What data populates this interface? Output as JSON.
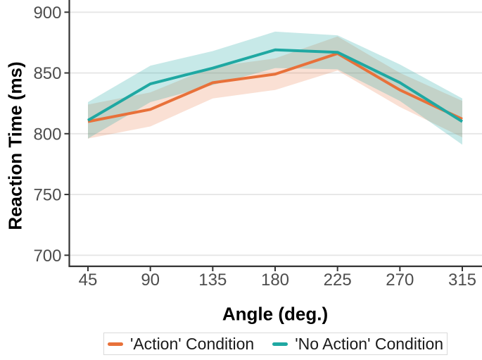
{
  "chart_data": {
    "type": "line",
    "title": "",
    "xlabel": "Angle (deg.)",
    "ylabel": "Reaction Time (ms)",
    "x": [
      45,
      90,
      135,
      180,
      225,
      270,
      315
    ],
    "x_ticks": [
      "45",
      "90",
      "135",
      "180",
      "225",
      "270",
      "315"
    ],
    "y_ticks": [
      "700",
      "750",
      "800",
      "850",
      "900"
    ],
    "y_tick_values": [
      700,
      750,
      800,
      850,
      900
    ],
    "xlim": [
      30,
      330
    ],
    "ylim": [
      691,
      910
    ],
    "grid": "horizontal-major-only",
    "legend_position": "bottom",
    "background_color": "#ffffff",
    "gridline_color": "#e6e6e6",
    "axis_line_color": "#333333",
    "tick_label_color": "#4d4d4d",
    "series": [
      {
        "name": "'Action' Condition",
        "color": "#e8713a",
        "band_opacity": 0.22,
        "values": [
          810,
          820,
          842,
          849,
          866,
          836,
          812
        ],
        "lower": [
          796,
          806,
          829,
          836,
          852,
          822,
          797
        ],
        "upper": [
          824,
          834,
          855,
          862,
          880,
          850,
          827
        ]
      },
      {
        "name": "'No Action' Condition",
        "color": "#1fa8a2",
        "band_opacity": 0.25,
        "values": [
          811,
          841,
          854,
          869,
          867,
          842,
          810
        ],
        "lower": [
          796,
          826,
          840,
          854,
          853,
          827,
          791
        ],
        "upper": [
          826,
          856,
          868,
          884,
          881,
          857,
          829
        ]
      }
    ]
  }
}
